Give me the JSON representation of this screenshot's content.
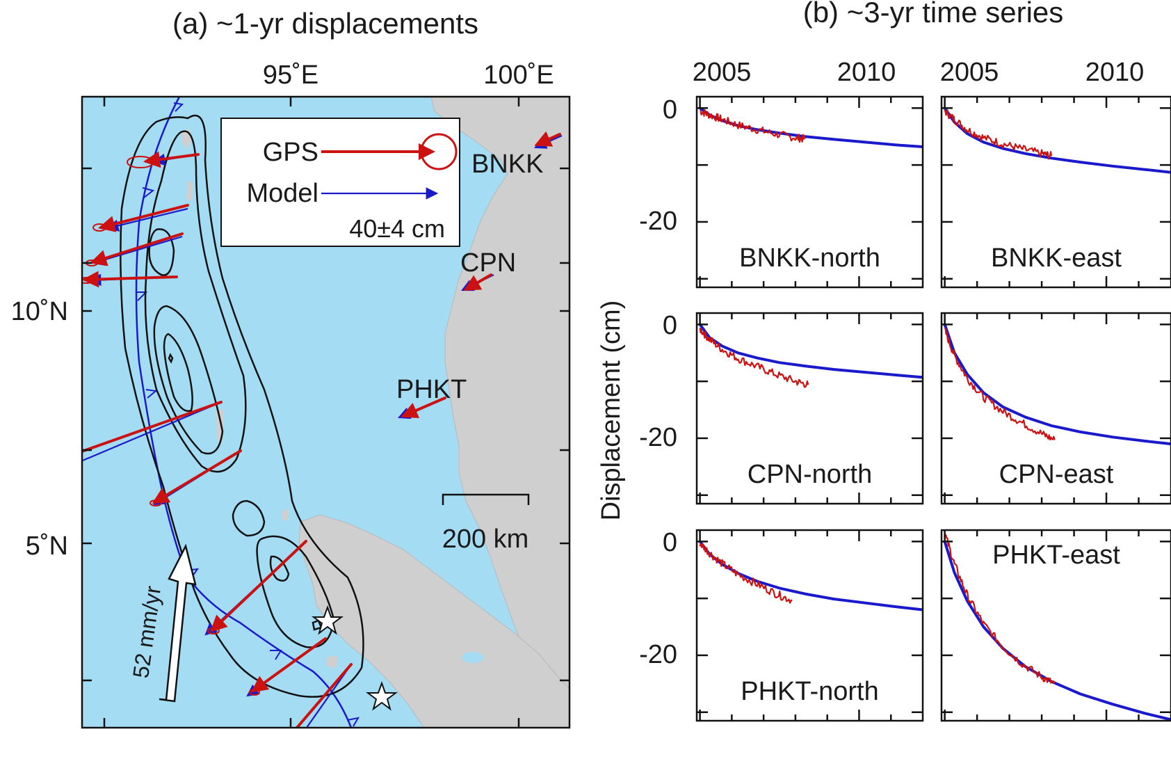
{
  "panel_a": {
    "title": "(a) ~1-yr displacements",
    "lon_ticks": [
      "95˚E",
      "100˚E"
    ],
    "lat_ticks": [
      "10˚N",
      "5˚N"
    ],
    "legend": {
      "gps": "GPS",
      "model": "Model",
      "scale": "40±4 cm"
    },
    "stations": [
      "BNKK",
      "CPN",
      "PHKT"
    ],
    "scale_bar": "200 km",
    "plate_rate": "52 mm/yr",
    "colors": {
      "gps": "#cc1111",
      "model": "#1a1acc",
      "sea": "#a4dcf4",
      "land": "#cfcfcf",
      "trench": "#1a1acc",
      "contour": "#111111"
    }
  },
  "panel_b": {
    "title": "(b) ~3-yr time series",
    "ylabel": "Displacement (cm)",
    "xticks": [
      "2005",
      "2010"
    ],
    "yticks": [
      "0",
      "-20"
    ]
  },
  "chart_data": [
    {
      "type": "line",
      "title": "(b) ~3-yr time series",
      "ylabel": "Displacement (cm)",
      "xlim": [
        2004.9,
        2012.0
      ],
      "ylim": [
        -31.5,
        2.0
      ],
      "panels": [
        {
          "label": "BNKK-north",
          "series": [
            {
              "name": "GPS",
              "x": [
                2005.0,
                2005.3,
                2005.7,
                2006.2,
                2006.8,
                2007.4,
                2008.0,
                2008.3
              ],
              "y": [
                -0.5,
                -1.2,
                -2.0,
                -3.0,
                -3.8,
                -4.6,
                -5.2,
                -5.4
              ]
            },
            {
              "name": "Model",
              "x": [
                2005.0,
                2005.3,
                2005.7,
                2006.2,
                2006.8,
                2007.5,
                2008.3,
                2009.2,
                2010.2,
                2011.2,
                2012.0
              ],
              "y": [
                0.0,
                -1.2,
                -2.2,
                -3.1,
                -3.8,
                -4.4,
                -5.0,
                -5.5,
                -6.0,
                -6.5,
                -6.8
              ]
            }
          ]
        },
        {
          "label": "BNKK-east",
          "series": [
            {
              "name": "GPS",
              "x": [
                2005.0,
                2005.3,
                2005.7,
                2006.2,
                2006.8,
                2007.4,
                2008.0,
                2008.3
              ],
              "y": [
                -0.5,
                -2.0,
                -3.8,
                -5.2,
                -6.3,
                -7.2,
                -8.0,
                -8.4
              ]
            },
            {
              "name": "Model",
              "x": [
                2005.0,
                2005.3,
                2005.7,
                2006.2,
                2006.8,
                2007.5,
                2008.3,
                2009.2,
                2010.2,
                2011.2,
                2012.0
              ],
              "y": [
                0.0,
                -2.5,
                -4.5,
                -6.0,
                -7.1,
                -8.0,
                -8.8,
                -9.5,
                -10.2,
                -10.8,
                -11.3
              ]
            }
          ]
        },
        {
          "label": "CPN-north",
          "series": [
            {
              "name": "GPS",
              "x": [
                2005.0,
                2005.3,
                2005.7,
                2006.2,
                2006.8,
                2007.4,
                2008.0,
                2008.4
              ],
              "y": [
                -0.8,
                -2.6,
                -4.4,
                -6.0,
                -7.4,
                -8.8,
                -10.0,
                -10.6
              ]
            },
            {
              "name": "Model",
              "x": [
                2005.0,
                2005.3,
                2005.7,
                2006.2,
                2006.8,
                2007.5,
                2008.3,
                2009.2,
                2010.2,
                2011.2,
                2012.0
              ],
              "y": [
                0.0,
                -2.3,
                -3.8,
                -5.0,
                -5.9,
                -6.7,
                -7.3,
                -7.9,
                -8.4,
                -8.9,
                -9.3
              ]
            }
          ]
        },
        {
          "label": "CPN-east",
          "series": [
            {
              "name": "GPS",
              "x": [
                2005.0,
                2005.3,
                2005.7,
                2006.2,
                2006.8,
                2007.4,
                2008.0,
                2008.4
              ],
              "y": [
                -1.0,
                -5.5,
                -9.5,
                -12.8,
                -15.3,
                -17.3,
                -19.2,
                -20.3
              ]
            },
            {
              "name": "Model",
              "x": [
                2005.0,
                2005.3,
                2005.7,
                2006.2,
                2006.8,
                2007.5,
                2008.3,
                2009.2,
                2010.2,
                2011.2,
                2012.0
              ],
              "y": [
                0.0,
                -5.0,
                -8.8,
                -12.0,
                -14.5,
                -16.3,
                -17.8,
                -18.9,
                -19.8,
                -20.5,
                -21.0
              ]
            }
          ]
        },
        {
          "label": "PHKT-north",
          "series": [
            {
              "name": "GPS",
              "x": [
                2005.0,
                2005.3,
                2005.7,
                2006.2,
                2006.8,
                2007.4,
                2007.9
              ],
              "y": [
                -0.3,
                -2.0,
                -3.9,
                -5.8,
                -7.5,
                -9.2,
                -10.4
              ]
            },
            {
              "name": "Model",
              "x": [
                2005.0,
                2005.3,
                2005.7,
                2006.2,
                2006.8,
                2007.5,
                2008.3,
                2009.2,
                2010.2,
                2011.2,
                2012.0
              ],
              "y": [
                0.0,
                -2.2,
                -4.0,
                -5.6,
                -7.0,
                -8.2,
                -9.2,
                -10.1,
                -10.8,
                -11.5,
                -12.0
              ]
            }
          ]
        },
        {
          "label": "PHKT-east",
          "series": [
            {
              "name": "GPS",
              "x": [
                2005.0,
                2005.3,
                2005.7,
                2006.2,
                2006.8,
                2007.4,
                2008.0,
                2008.4
              ],
              "y": [
                1.5,
                -4.0,
                -9.5,
                -14.5,
                -18.5,
                -21.5,
                -23.8,
                -25.0
              ]
            },
            {
              "name": "Model",
              "x": [
                2005.0,
                2005.3,
                2005.7,
                2006.2,
                2006.8,
                2007.5,
                2008.3,
                2009.2,
                2010.2,
                2011.2,
                2012.0
              ],
              "y": [
                0.0,
                -5.5,
                -10.5,
                -15.0,
                -18.8,
                -22.0,
                -24.6,
                -26.8,
                -28.6,
                -30.2,
                -31.3
              ]
            }
          ]
        }
      ]
    }
  ]
}
